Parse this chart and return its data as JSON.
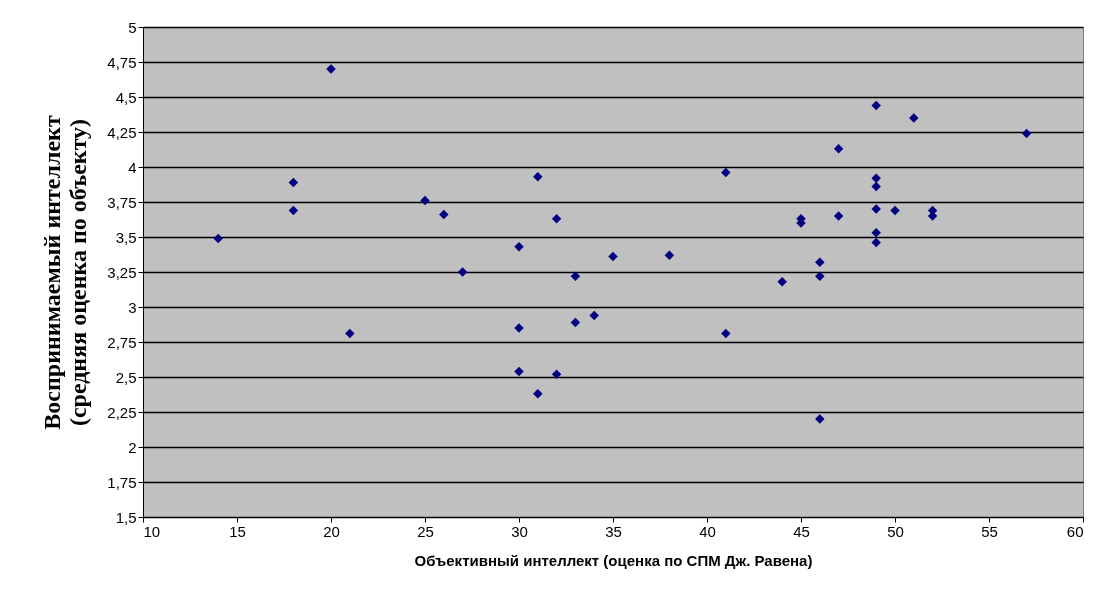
{
  "chart_data": {
    "type": "scatter",
    "xlabel": "Объективный интеллект (оценка по СПМ Дж. Равена)",
    "ylabel": "Воспринимаемый интеллект\n(средняя оценка по объекту)",
    "series": [
      {
        "color": "#000080",
        "marker": "diamond",
        "x": [
          14,
          18,
          18,
          20,
          21,
          25,
          26,
          27,
          30,
          30,
          30,
          31,
          31,
          32,
          32,
          33,
          33,
          34,
          35,
          38,
          41,
          41,
          44,
          45,
          45,
          46,
          46,
          46,
          47,
          47,
          49,
          49,
          49,
          49,
          49,
          49,
          50,
          51,
          52,
          52,
          57
        ],
        "values": [
          3.49,
          3.89,
          3.69,
          4.7,
          2.81,
          3.76,
          3.66,
          3.25,
          3.43,
          2.85,
          2.54,
          3.93,
          2.38,
          3.63,
          2.52,
          3.22,
          2.89,
          2.94,
          3.36,
          3.37,
          3.96,
          2.81,
          3.18,
          3.63,
          3.6,
          3.32,
          3.22,
          2.2,
          4.13,
          3.65,
          4.44,
          3.92,
          3.86,
          3.7,
          3.53,
          3.46,
          3.69,
          4.35,
          3.69,
          3.65,
          4.24
        ]
      }
    ],
    "xlim": [
      10,
      60
    ],
    "xticks": [
      10,
      15,
      20,
      25,
      30,
      35,
      40,
      45,
      50,
      55,
      60
    ],
    "ylim": [
      1.5,
      5
    ],
    "yticks": [
      {
        "value": 1.5,
        "label": "1,5"
      },
      {
        "value": 1.75,
        "label": "1,75"
      },
      2,
      {
        "value": 2.25,
        "label": "2,25"
      },
      {
        "value": 2.5,
        "label": "2,5"
      },
      {
        "value": 2.75,
        "label": "2,75"
      },
      3,
      {
        "value": 3.25,
        "label": "3,25"
      },
      {
        "value": 3.5,
        "label": "3,5"
      },
      {
        "value": 3.75,
        "label": "3,75"
      },
      4,
      {
        "value": 4.25,
        "label": "4,25"
      },
      {
        "value": 4.5,
        "label": "4,5"
      },
      {
        "value": 4.75,
        "label": "4,75"
      },
      5
    ],
    "grid": "y"
  }
}
